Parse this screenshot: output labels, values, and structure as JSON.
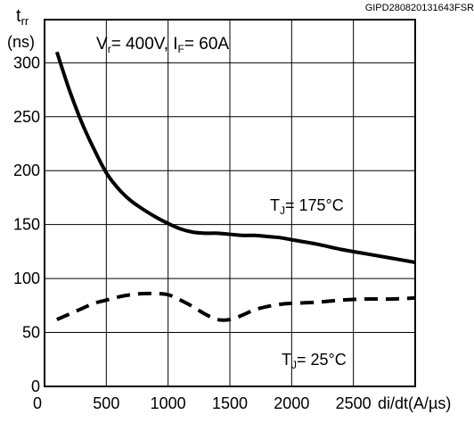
{
  "chart_data": {
    "type": "line",
    "code_label": "GIPD280820131643FSR",
    "y_axis": {
      "symbol_main": "t",
      "symbol_sub": "rr",
      "unit": "(ns)",
      "ylim": [
        0,
        340
      ],
      "ticks": [
        0,
        50,
        100,
        150,
        200,
        250,
        300
      ]
    },
    "x_axis": {
      "xlim": [
        0,
        3000
      ],
      "ticks": [
        500,
        1000,
        1500,
        2000,
        2500
      ],
      "tick_labels": [
        "500",
        "1000",
        "1500",
        "2000",
        "2500"
      ],
      "label": "di/dt(A/µs)",
      "origin_label": "0"
    },
    "conditions": {
      "v_main": "V",
      "v_sub": "r",
      "v_rest": "= 400V, ",
      "i_main": "I",
      "i_sub": "F",
      "i_rest": "= 60A"
    },
    "grid": true,
    "series": [
      {
        "label_main": "T",
        "label_sub": "J",
        "label_rest": "= 175°C",
        "style": "solid",
        "x": [
          100,
          200,
          300,
          400,
          500,
          600,
          700,
          800,
          900,
          1000,
          1100,
          1200,
          1300,
          1400,
          1500,
          1600,
          1700,
          1800,
          1900,
          2000,
          2200,
          2400,
          2600,
          2800,
          3000
        ],
        "y": [
          310,
          275,
          245,
          220,
          198,
          183,
          172,
          164,
          157,
          151,
          146,
          143,
          142,
          142,
          141,
          140,
          140,
          139,
          138,
          136,
          132,
          127,
          123,
          119,
          115
        ]
      },
      {
        "label_main": "T",
        "label_sub": "J",
        "label_rest": "= 25°C",
        "style": "dashed",
        "x": [
          100,
          200,
          300,
          400,
          500,
          600,
          700,
          800,
          900,
          1000,
          1100,
          1200,
          1300,
          1400,
          1500,
          1600,
          1700,
          1800,
          1900,
          2000,
          2200,
          2400,
          2600,
          2800,
          3000
        ],
        "y": [
          62,
          67,
          72,
          77,
          80,
          83,
          85,
          86,
          86,
          85,
          80,
          74,
          67,
          62,
          62,
          66,
          71,
          74,
          76,
          77,
          78,
          80,
          81,
          81,
          82
        ]
      }
    ]
  }
}
